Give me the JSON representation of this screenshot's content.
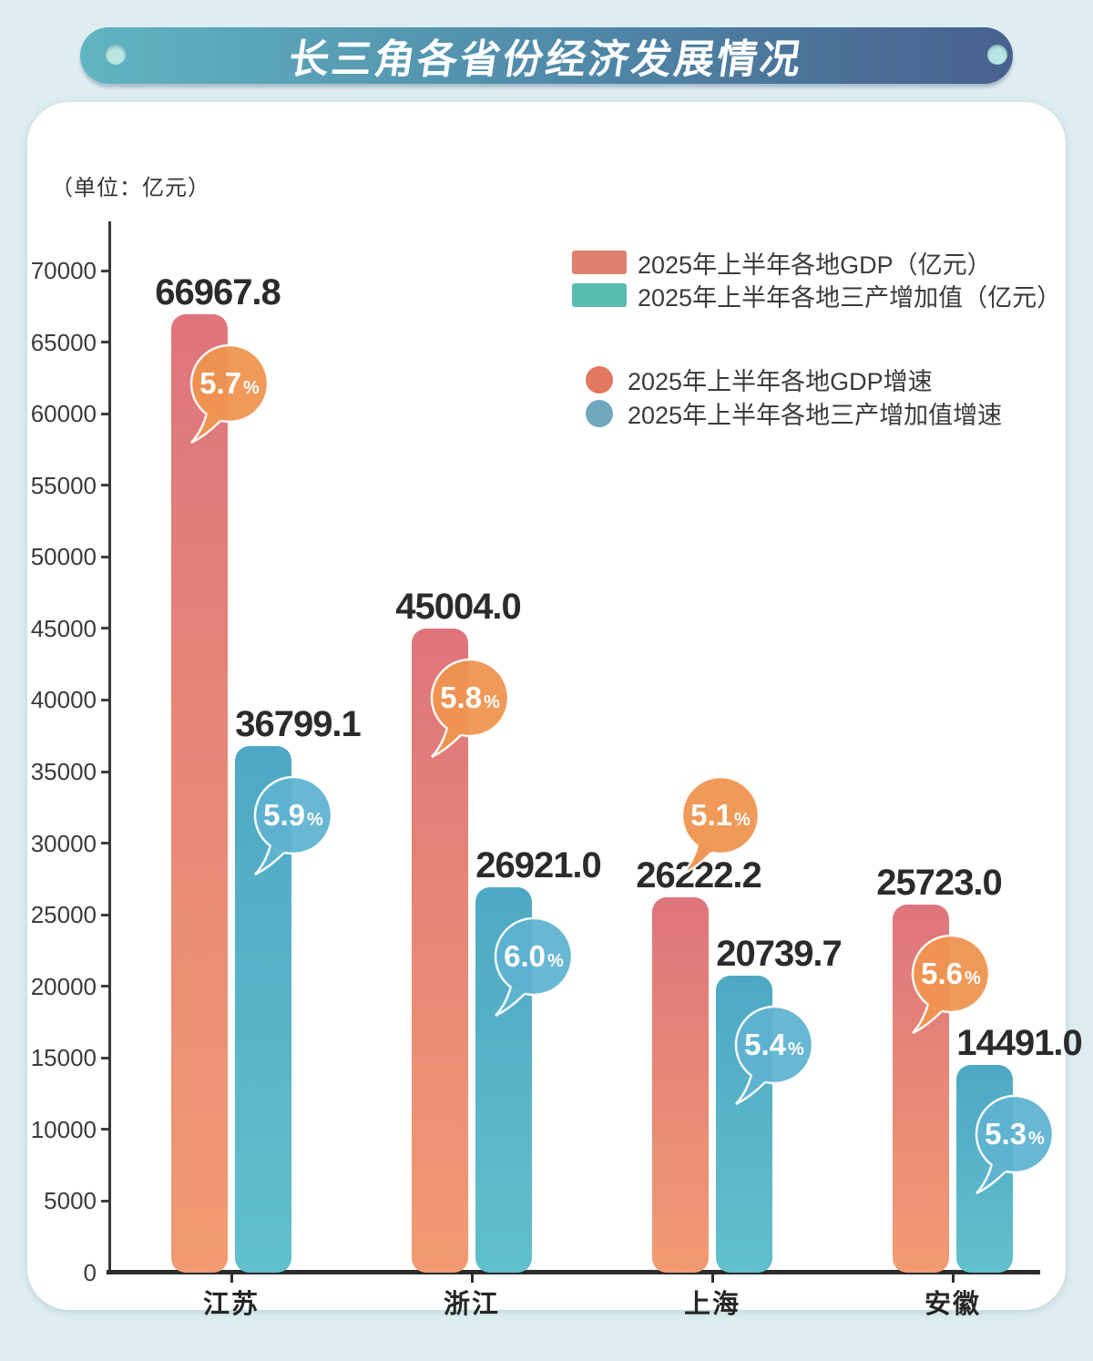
{
  "title": "长三角各省份经济发展情况",
  "unit_label": "（单位：亿元）",
  "legend": {
    "bars": [
      {
        "label": "2025年上半年各地GDP（亿元）",
        "color": "#df8170"
      },
      {
        "label": "2025年上半年各地三产增加值（亿元）",
        "color": "#58bcb0"
      }
    ],
    "dots": [
      {
        "label": "2025年上半年各地GDP增速",
        "color": "#e3795f"
      },
      {
        "label": "2025年上半年各地三产增加值增速",
        "color": "#6fa8be"
      }
    ]
  },
  "chart_data": {
    "type": "bar",
    "categories": [
      "江苏",
      "浙江",
      "上海",
      "安徽"
    ],
    "series": [
      {
        "name": "2025年上半年各地GDP（亿元）",
        "values": [
          66967.8,
          45004.0,
          26222.2,
          25723.0
        ],
        "labels": [
          "66967.8",
          "45004.0",
          "26222.2",
          "25723.0"
        ],
        "bar_gradient": [
          "#de757c",
          "#f19b72"
        ]
      },
      {
        "name": "2025年上半年各地三产增加值（亿元）",
        "values": [
          36799.1,
          26921.0,
          20739.7,
          14491.0
        ],
        "labels": [
          "36799.1",
          "26921.0",
          "20739.7",
          "14491.0"
        ],
        "bar_gradient": [
          "#4ea8c4",
          "#61c0cc"
        ]
      }
    ],
    "growth_series": [
      {
        "name": "2025年上半年各地GDP增速",
        "values_pct": [
          "5.7",
          "5.8",
          "5.1",
          "5.6"
        ],
        "bubble_color": "#ef9450",
        "bubble_positions": [
          "on",
          "on",
          "above",
          "on"
        ]
      },
      {
        "name": "2025年上半年各地三产增加值增速",
        "values_pct": [
          "5.9",
          "6.0",
          "5.4",
          "5.3"
        ],
        "bubble_color": "#5fb3d0",
        "bubble_positions": [
          "on",
          "on",
          "on",
          "on"
        ]
      }
    ],
    "ylim": [
      0,
      70000
    ],
    "ytick_step": 5000,
    "grid": false,
    "legend_position": "top-right"
  },
  "colors": {
    "page_background": "#ddedf0",
    "card_background": "#ffffff",
    "title_gradient": [
      "#60b5c2",
      "#4f87a7",
      "#47618e"
    ],
    "title_rivet": "#b9e5e3",
    "axis": "#333333",
    "value_text": "#2b2b2b"
  }
}
